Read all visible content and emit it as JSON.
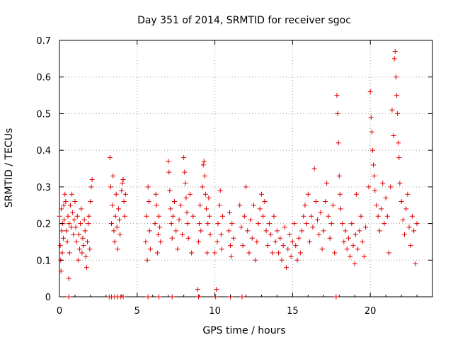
{
  "chart_data": {
    "type": "scatter",
    "title": "Day 351 of 2014, SRMTID for receiver sgoc",
    "xlabel": "GPS time / hours",
    "ylabel": "SRMTID / TECUs",
    "xlim": [
      0,
      24
    ],
    "ylim": [
      0,
      0.7
    ],
    "x_ticks": [
      0,
      5,
      10,
      15,
      20
    ],
    "x_tick_labels": [
      "0",
      "5",
      "10",
      "15",
      "20"
    ],
    "y_ticks": [
      0,
      0.1,
      0.2,
      0.3,
      0.4,
      0.5,
      0.6,
      0.7
    ],
    "y_tick_labels": [
      "0",
      "0.1",
      "0.2",
      "0.3",
      "0.4",
      "0.5",
      "0.6",
      "0.7"
    ],
    "grid": true,
    "marker": "+",
    "series": [
      {
        "name": "SRMTID",
        "color": "#e00000",
        "points": [
          [
            0.0,
            0.22
          ],
          [
            0.05,
            0.14
          ],
          [
            0.08,
            0.1
          ],
          [
            0.1,
            0.07
          ],
          [
            0.12,
            0.24
          ],
          [
            0.15,
            0.18
          ],
          [
            0.18,
            0.12
          ],
          [
            0.2,
            0.2
          ],
          [
            0.25,
            0.16
          ],
          [
            0.28,
            0.25
          ],
          [
            0.3,
            0.21
          ],
          [
            0.35,
            0.28
          ],
          [
            0.4,
            0.26
          ],
          [
            0.45,
            0.18
          ],
          [
            0.5,
            0.15
          ],
          [
            0.55,
            0.22
          ],
          [
            0.6,
            0.05
          ],
          [
            0.62,
            0.2
          ],
          [
            0.65,
            0.12
          ],
          [
            0.7,
            0.25
          ],
          [
            0.75,
            0.19
          ],
          [
            0.8,
            0.28
          ],
          [
            0.85,
            0.23
          ],
          [
            0.9,
            0.17
          ],
          [
            0.95,
            0.21
          ],
          [
            1.0,
            0.26
          ],
          [
            1.05,
            0.19
          ],
          [
            1.1,
            0.15
          ],
          [
            1.15,
            0.22
          ],
          [
            1.2,
            0.1
          ],
          [
            1.25,
            0.17
          ],
          [
            1.3,
            0.13
          ],
          [
            1.35,
            0.2
          ],
          [
            1.4,
            0.24
          ],
          [
            1.45,
            0.12
          ],
          [
            1.5,
            0.16
          ],
          [
            1.55,
            0.14
          ],
          [
            1.6,
            0.21
          ],
          [
            1.65,
            0.18
          ],
          [
            1.7,
            0.11
          ],
          [
            1.75,
            0.08
          ],
          [
            1.8,
            0.15
          ],
          [
            1.85,
            0.2
          ],
          [
            1.9,
            0.22
          ],
          [
            1.95,
            0.13
          ],
          [
            2.0,
            0.26
          ],
          [
            2.05,
            0.3
          ],
          [
            2.1,
            0.32
          ],
          [
            3.25,
            0.38
          ],
          [
            3.3,
            0.3
          ],
          [
            3.35,
            0.2
          ],
          [
            3.4,
            0.25
          ],
          [
            3.45,
            0.33
          ],
          [
            3.5,
            0.18
          ],
          [
            3.55,
            0.15
          ],
          [
            3.6,
            0.22
          ],
          [
            3.65,
            0.28
          ],
          [
            3.7,
            0.19
          ],
          [
            3.75,
            0.13
          ],
          [
            3.8,
            0.24
          ],
          [
            3.85,
            0.21
          ],
          [
            3.9,
            0.17
          ],
          [
            4.0,
            0.29
          ],
          [
            4.05,
            0.31
          ],
          [
            4.1,
            0.32
          ],
          [
            4.15,
            0.26
          ],
          [
            4.2,
            0.22
          ],
          [
            4.25,
            0.28
          ],
          [
            5.55,
            0.15
          ],
          [
            5.6,
            0.22
          ],
          [
            5.65,
            0.1
          ],
          [
            5.7,
            0.3
          ],
          [
            5.75,
            0.26
          ],
          [
            5.8,
            0.18
          ],
          [
            5.85,
            0.13
          ],
          [
            6.15,
            0.2
          ],
          [
            6.2,
            0.28
          ],
          [
            6.25,
            0.25
          ],
          [
            6.3,
            0.12
          ],
          [
            6.35,
            0.17
          ],
          [
            6.4,
            0.22
          ],
          [
            6.45,
            0.19
          ],
          [
            6.5,
            0.15
          ],
          [
            7.0,
            0.37
          ],
          [
            7.05,
            0.34
          ],
          [
            7.1,
            0.29
          ],
          [
            7.15,
            0.24
          ],
          [
            7.2,
            0.2
          ],
          [
            7.25,
            0.16
          ],
          [
            7.3,
            0.22
          ],
          [
            7.4,
            0.26
          ],
          [
            7.5,
            0.18
          ],
          [
            7.6,
            0.13
          ],
          [
            7.7,
            0.21
          ],
          [
            7.8,
            0.25
          ],
          [
            7.9,
            0.17
          ],
          [
            8.0,
            0.38
          ],
          [
            8.05,
            0.34
          ],
          [
            8.1,
            0.31
          ],
          [
            8.15,
            0.27
          ],
          [
            8.2,
            0.23
          ],
          [
            8.25,
            0.2
          ],
          [
            8.3,
            0.16
          ],
          [
            8.4,
            0.28
          ],
          [
            8.5,
            0.12
          ],
          [
            8.6,
            0.22
          ],
          [
            8.9,
            0.02
          ],
          [
            8.95,
            0.15
          ],
          [
            9.0,
            0.2
          ],
          [
            9.05,
            0.25
          ],
          [
            9.1,
            0.18
          ],
          [
            9.2,
            0.3
          ],
          [
            9.25,
            0.36
          ],
          [
            9.3,
            0.37
          ],
          [
            9.35,
            0.33
          ],
          [
            9.4,
            0.28
          ],
          [
            9.45,
            0.24
          ],
          [
            9.5,
            0.12
          ],
          [
            9.55,
            0.2
          ],
          [
            9.6,
            0.27
          ],
          [
            9.65,
            0.22
          ],
          [
            9.7,
            0.17
          ],
          [
            10.0,
            0.12
          ],
          [
            10.1,
            0.02
          ],
          [
            10.15,
            0.15
          ],
          [
            10.2,
            0.2
          ],
          [
            10.3,
            0.25
          ],
          [
            10.35,
            0.29
          ],
          [
            10.4,
            0.17
          ],
          [
            10.45,
            0.13
          ],
          [
            10.5,
            0.22
          ],
          [
            10.9,
            0.18
          ],
          [
            10.95,
            0.23
          ],
          [
            11.0,
            0.14
          ],
          [
            11.05,
            0.11
          ],
          [
            11.1,
            0.2
          ],
          [
            11.2,
            0.16
          ],
          [
            11.6,
            0.25
          ],
          [
            11.7,
            0.19
          ],
          [
            11.8,
            0.14
          ],
          [
            11.9,
            0.22
          ],
          [
            12.0,
            0.3
          ],
          [
            12.1,
            0.18
          ],
          [
            12.2,
            0.12
          ],
          [
            12.3,
            0.21
          ],
          [
            12.4,
            0.16
          ],
          [
            12.5,
            0.25
          ],
          [
            12.6,
            0.1
          ],
          [
            12.7,
            0.15
          ],
          [
            12.8,
            0.2
          ],
          [
            12.9,
            0.24
          ],
          [
            13.0,
            0.28
          ],
          [
            13.1,
            0.22
          ],
          [
            13.2,
            0.26
          ],
          [
            13.3,
            0.18
          ],
          [
            13.4,
            0.14
          ],
          [
            13.5,
            0.2
          ],
          [
            13.6,
            0.17
          ],
          [
            13.7,
            0.12
          ],
          [
            13.8,
            0.22
          ],
          [
            13.9,
            0.15
          ],
          [
            14.0,
            0.18
          ],
          [
            14.1,
            0.12
          ],
          [
            14.2,
            0.16
          ],
          [
            14.3,
            0.1
          ],
          [
            14.4,
            0.14
          ],
          [
            14.5,
            0.19
          ],
          [
            14.6,
            0.08
          ],
          [
            14.7,
            0.13
          ],
          [
            14.8,
            0.17
          ],
          [
            14.9,
            0.11
          ],
          [
            15.0,
            0.15
          ],
          [
            15.1,
            0.2
          ],
          [
            15.2,
            0.14
          ],
          [
            15.3,
            0.1
          ],
          [
            15.4,
            0.16
          ],
          [
            15.5,
            0.12
          ],
          [
            15.6,
            0.18
          ],
          [
            15.7,
            0.22
          ],
          [
            15.8,
            0.25
          ],
          [
            15.9,
            0.2
          ],
          [
            16.0,
            0.28
          ],
          [
            16.1,
            0.15
          ],
          [
            16.2,
            0.22
          ],
          [
            16.3,
            0.19
          ],
          [
            16.4,
            0.35
          ],
          [
            16.5,
            0.26
          ],
          [
            16.6,
            0.21
          ],
          [
            16.7,
            0.17
          ],
          [
            16.8,
            0.23
          ],
          [
            16.9,
            0.13
          ],
          [
            17.0,
            0.18
          ],
          [
            17.1,
            0.26
          ],
          [
            17.2,
            0.31
          ],
          [
            17.3,
            0.22
          ],
          [
            17.4,
            0.16
          ],
          [
            17.5,
            0.2
          ],
          [
            17.6,
            0.25
          ],
          [
            17.7,
            0.12
          ],
          [
            17.85,
            0.55
          ],
          [
            17.9,
            0.5
          ],
          [
            17.95,
            0.42
          ],
          [
            18.0,
            0.33
          ],
          [
            18.05,
            0.28
          ],
          [
            18.1,
            0.24
          ],
          [
            18.2,
            0.2
          ],
          [
            18.3,
            0.15
          ],
          [
            18.4,
            0.18
          ],
          [
            18.5,
            0.13
          ],
          [
            18.6,
            0.16
          ],
          [
            18.7,
            0.11
          ],
          [
            18.8,
            0.2
          ],
          [
            18.9,
            0.14
          ],
          [
            19.0,
            0.09
          ],
          [
            19.05,
            0.17
          ],
          [
            19.1,
            0.28
          ],
          [
            19.2,
            0.13
          ],
          [
            19.3,
            0.18
          ],
          [
            19.4,
            0.22
          ],
          [
            19.5,
            0.15
          ],
          [
            19.6,
            0.11
          ],
          [
            19.7,
            0.19
          ],
          [
            19.9,
            0.3
          ],
          [
            20.0,
            0.56
          ],
          [
            20.05,
            0.49
          ],
          [
            20.1,
            0.45
          ],
          [
            20.15,
            0.4
          ],
          [
            20.2,
            0.36
          ],
          [
            20.25,
            0.33
          ],
          [
            20.3,
            0.29
          ],
          [
            20.4,
            0.25
          ],
          [
            20.5,
            0.22
          ],
          [
            20.6,
            0.18
          ],
          [
            20.7,
            0.24
          ],
          [
            20.8,
            0.31
          ],
          [
            20.9,
            0.2
          ],
          [
            21.0,
            0.27
          ],
          [
            21.1,
            0.22
          ],
          [
            21.2,
            0.12
          ],
          [
            21.3,
            0.3
          ],
          [
            21.4,
            0.51
          ],
          [
            21.5,
            0.44
          ],
          [
            21.55,
            0.65
          ],
          [
            21.6,
            0.67
          ],
          [
            21.65,
            0.6
          ],
          [
            21.7,
            0.55
          ],
          [
            21.75,
            0.5
          ],
          [
            21.8,
            0.42
          ],
          [
            21.85,
            0.38
          ],
          [
            21.9,
            0.31
          ],
          [
            22.0,
            0.26
          ],
          [
            22.1,
            0.21
          ],
          [
            22.2,
            0.17
          ],
          [
            22.3,
            0.24
          ],
          [
            22.4,
            0.28
          ],
          [
            22.5,
            0.19
          ],
          [
            22.6,
            0.14
          ],
          [
            22.7,
            0.22
          ],
          [
            22.8,
            0.18
          ],
          [
            22.9,
            0.09
          ],
          [
            23.0,
            0.2
          ],
          [
            0.6,
            0.0
          ],
          [
            3.2,
            0.0
          ],
          [
            3.35,
            0.0
          ],
          [
            3.55,
            0.0
          ],
          [
            3.75,
            0.0
          ],
          [
            3.95,
            0.0
          ],
          [
            4.1,
            0.0
          ],
          [
            5.7,
            0.0
          ],
          [
            6.4,
            0.0
          ],
          [
            7.25,
            0.0
          ],
          [
            8.95,
            0.0
          ],
          [
            10.05,
            0.0
          ],
          [
            11.0,
            0.0
          ],
          [
            11.75,
            0.0
          ],
          [
            17.8,
            0.0
          ]
        ]
      }
    ]
  }
}
